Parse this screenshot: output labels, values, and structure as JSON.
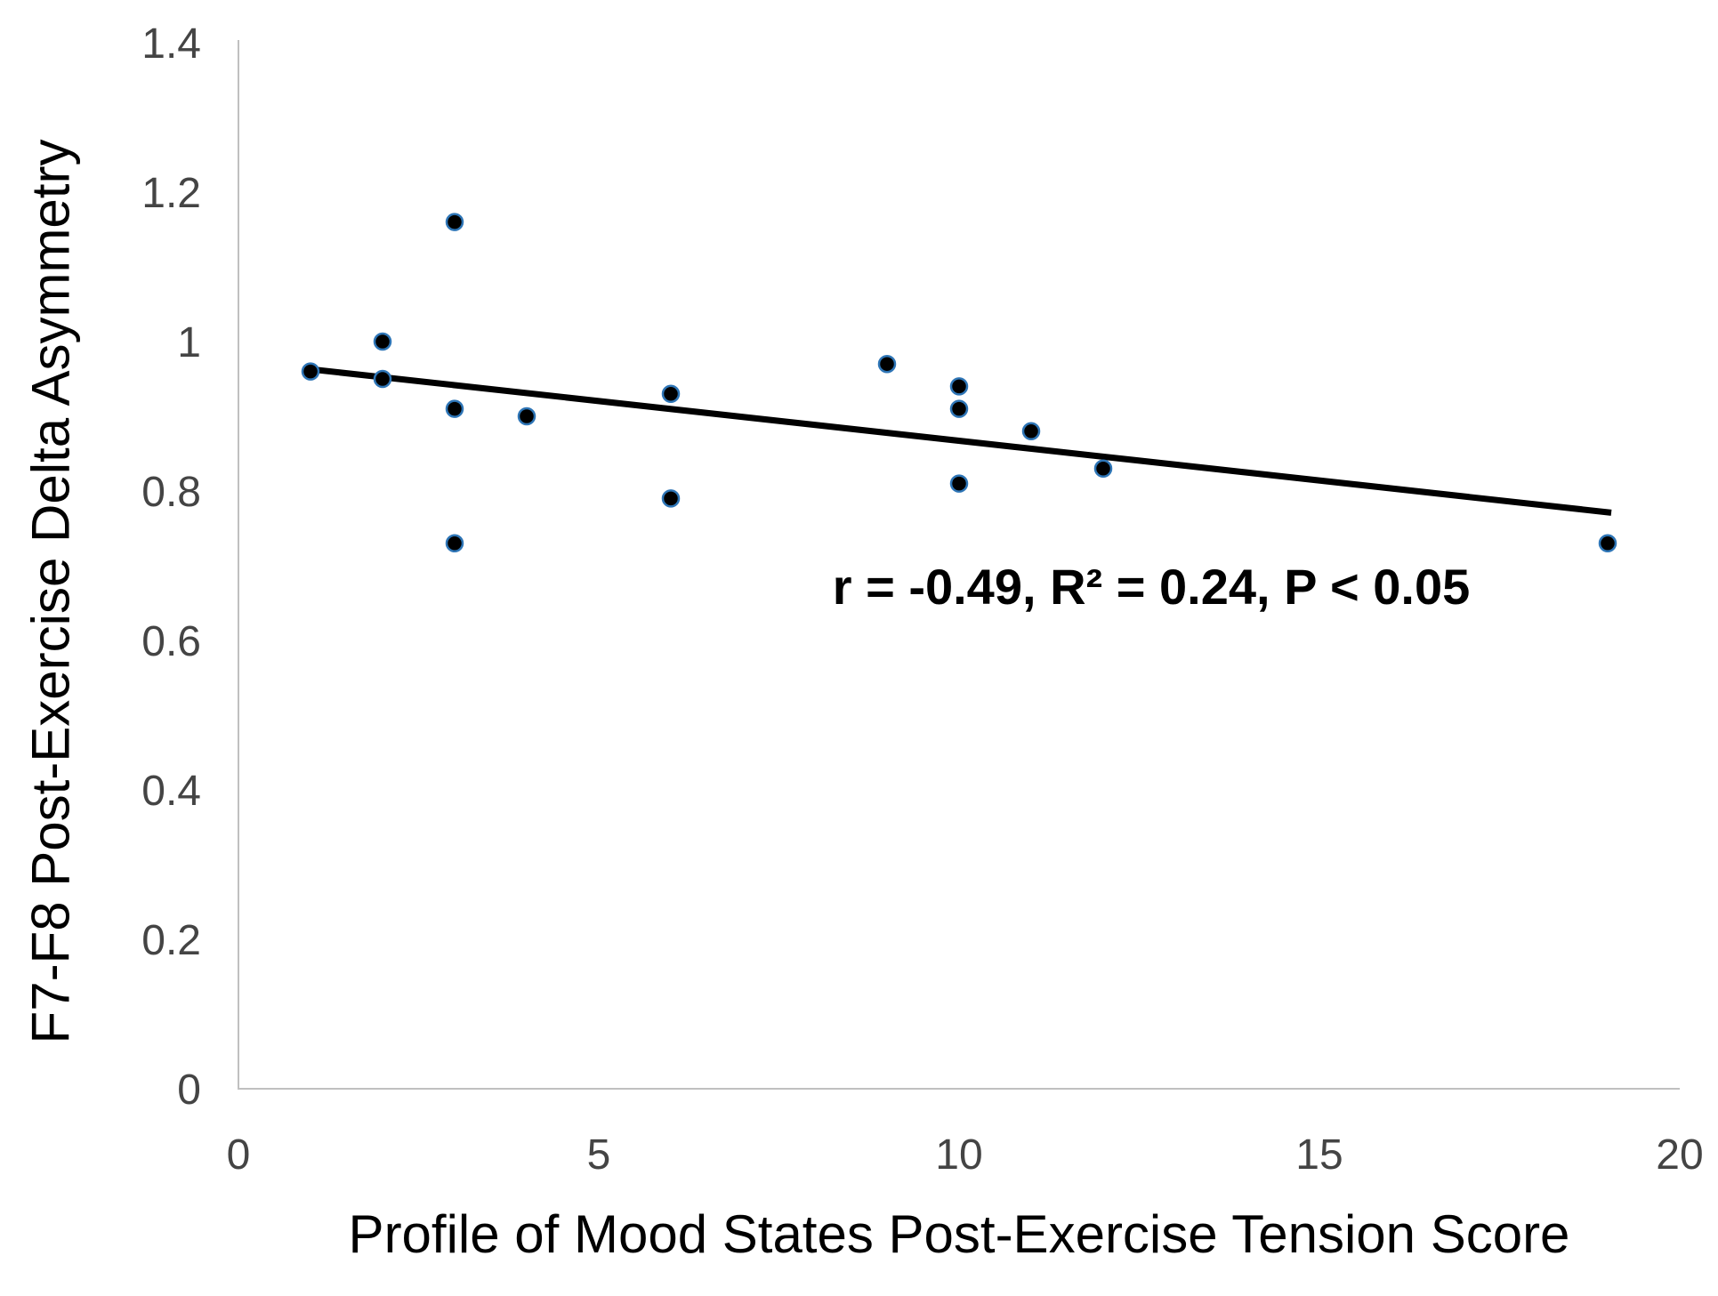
{
  "chart_data": {
    "type": "scatter",
    "title": "",
    "xlabel": "Profile of Mood States Post-Exercise Tension Score",
    "ylabel": "F7-F8 Post-Exercise Delta Asymmetry",
    "xlim": [
      0,
      20
    ],
    "ylim": [
      0,
      1.4
    ],
    "grid": false,
    "legend": "none",
    "x_tick_values": [
      0,
      5,
      10,
      15,
      20
    ],
    "x_tick_labels": [
      "0",
      "5",
      "10",
      "15",
      "20"
    ],
    "y_tick_values": [
      0,
      0.2,
      0.4,
      0.6,
      0.8,
      1.0,
      1.2,
      1.4
    ],
    "y_tick_labels": [
      "0",
      "0.2",
      "0.4",
      "0.6",
      "0.8",
      "1",
      "1.2",
      "1.4"
    ],
    "points": [
      [
        1,
        0.96
      ],
      [
        2,
        1.0
      ],
      [
        2,
        0.95
      ],
      [
        3,
        1.16
      ],
      [
        3,
        0.91
      ],
      [
        3,
        0.73
      ],
      [
        4,
        0.9
      ],
      [
        6,
        0.93
      ],
      [
        6,
        0.79
      ],
      [
        9,
        0.97
      ],
      [
        10,
        0.94
      ],
      [
        10,
        0.91
      ],
      [
        10,
        0.81
      ],
      [
        11,
        0.88
      ],
      [
        12,
        0.83
      ],
      [
        19,
        0.73
      ]
    ],
    "trendline": {
      "x_start": 1.04,
      "y_start": 0.9625,
      "x_end": 19.05,
      "y_end": 0.771
    },
    "annotation": "r = -0.49, R² = 0.24, P < 0.05",
    "colors": {
      "marker_fill": "#000000",
      "marker_stroke": "#2e75b6",
      "trendline": "#000000",
      "axis_line": "#c0c0c0",
      "tick_label": "#444444",
      "axis_title": "#000000",
      "annotation": "#000000",
      "background": "#ffffff"
    }
  }
}
